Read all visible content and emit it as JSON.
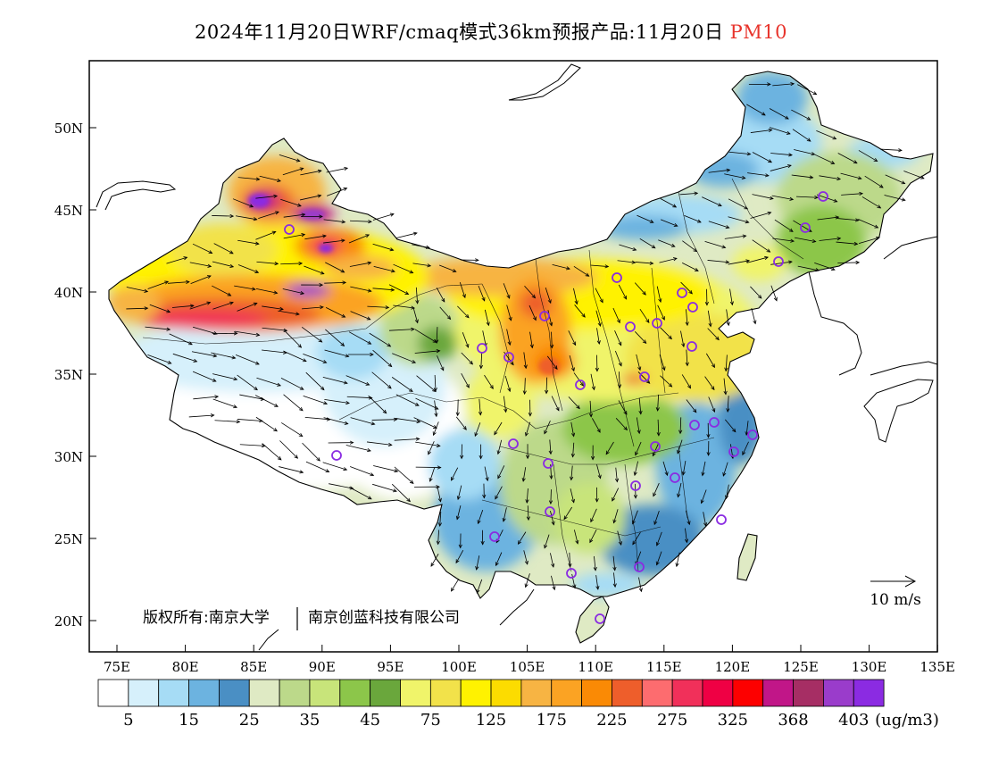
{
  "title": {
    "prefix": "2024年11月20日WRF/cmaq模式36km预报产品:11月20日",
    "species": "PM10"
  },
  "map": {
    "lat_ticks": [
      "50N",
      "45N",
      "40N",
      "35N",
      "30N",
      "25N",
      "20N"
    ],
    "lon_ticks": [
      "75E",
      "80E",
      "85E",
      "90E",
      "95E",
      "100E",
      "105E",
      "110E",
      "115E",
      "120E",
      "125E",
      "130E",
      "135E"
    ],
    "lon_range": [
      73,
      135
    ],
    "lat_range": [
      18,
      54
    ],
    "copyright_left": "版权所有:南京大学",
    "copyright_right": "南京创蓝科技有限公司",
    "vector_ref_label": "10 m/s"
  },
  "colorbar": {
    "colors": [
      "#ffffff",
      "#d6f0fb",
      "#a6dcf5",
      "#6cb3e0",
      "#4a8fc4",
      "#dfeac4",
      "#bcd98a",
      "#c8e47a",
      "#8cc64a",
      "#6aa73c",
      "#f0f46a",
      "#f2e24a",
      "#fff200",
      "#fcdc00",
      "#f7b443",
      "#fba323",
      "#fa8a05",
      "#ee5e2b",
      "#fd6c6f",
      "#f1305a",
      "#ef0044",
      "#fd0000",
      "#c11688",
      "#a62e64",
      "#9a3ccb",
      "#8b2be2"
    ],
    "labels": [
      "5",
      "15",
      "25",
      "35",
      "45",
      "75",
      "125",
      "175",
      "225",
      "275",
      "325",
      "368",
      "403"
    ],
    "unit": "(ug/m3)"
  },
  "city_color": "#8a2be2"
}
